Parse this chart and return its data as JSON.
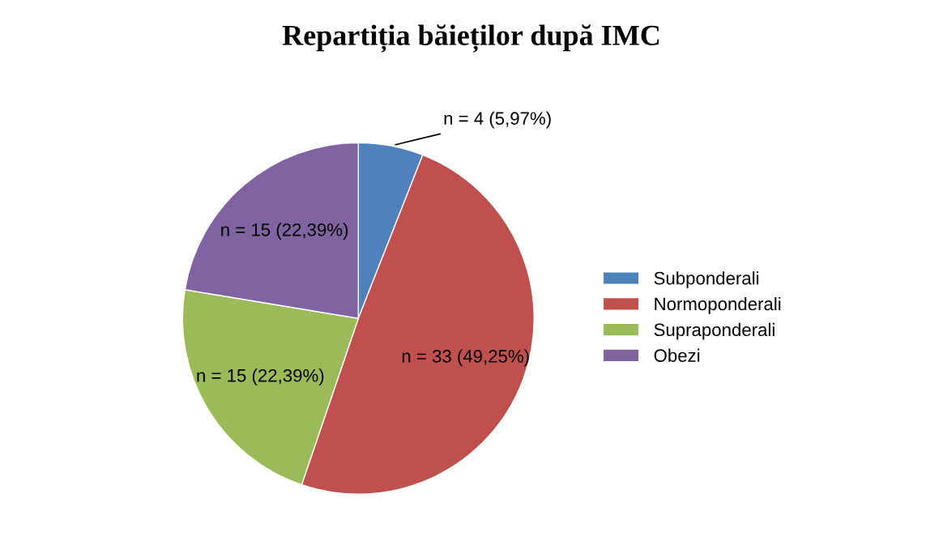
{
  "chart_data": {
    "type": "pie",
    "title": "Repartiția băieților după IMC",
    "categories": [
      "Subponderali",
      "Normoponderali",
      "Supraponderali",
      "Obezi"
    ],
    "values": [
      4,
      33,
      15,
      15
    ],
    "colors": [
      "#4f81bd",
      "#c0504d",
      "#9bbb59",
      "#8064a2"
    ],
    "value_labels": [
      "n = 4 (5,97%)",
      "n = 33 (49,25%)",
      "n = 15 (22,39%)",
      "n = 15 (22,39%)"
    ],
    "legend": "right"
  }
}
